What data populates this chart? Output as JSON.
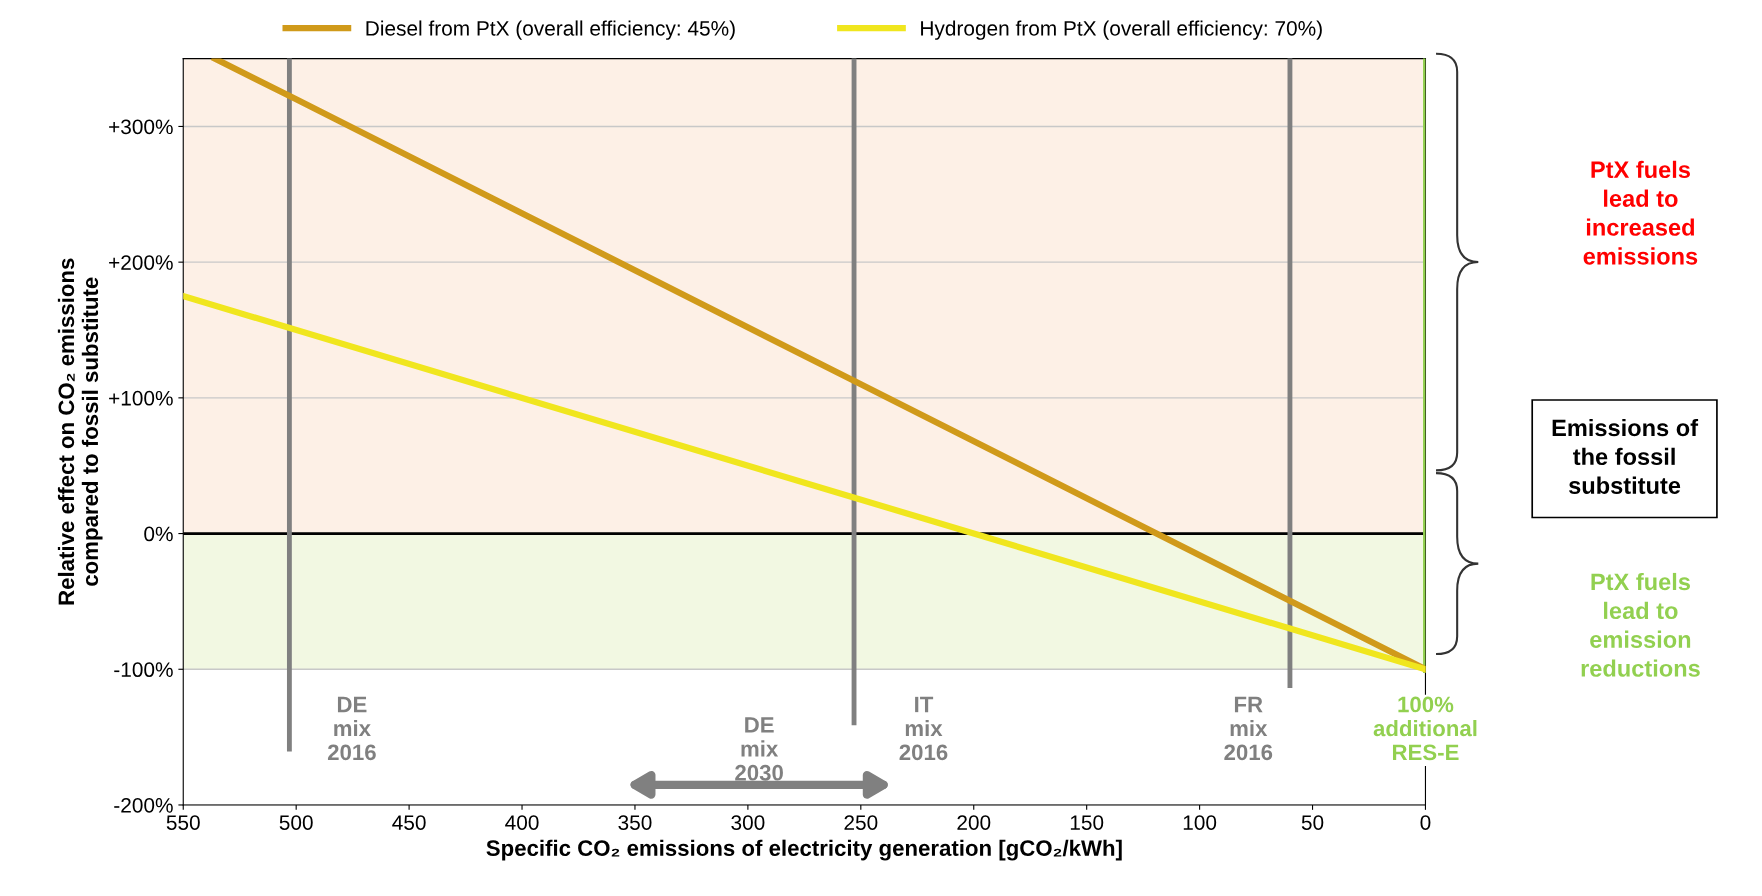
{
  "chart_data": {
    "type": "line",
    "xlabel": "Specific CO₂ emissions of electricity generation [gCO₂/kWh]",
    "ylabel": "Relative effect on CO₂ emissions\ncompared to fossil substitute",
    "series": [
      {
        "name": "Diesel from PtX (overall efficiency: 45%)",
        "color": "#d09a1a",
        "x": [
          0,
          250,
          500,
          536
        ],
        "values": [
          -100,
          110,
          320,
          350
        ]
      },
      {
        "name": "Hydrogen from PtX (overall efficiency: 70%)",
        "color": "#f0e61e",
        "x": [
          0,
          200,
          550
        ],
        "values": [
          -100,
          0,
          175
        ]
      }
    ],
    "xlim": [
      550,
      0
    ],
    "xticks": [
      550,
      500,
      450,
      400,
      350,
      300,
      250,
      200,
      150,
      100,
      50,
      0
    ],
    "ylim": [
      -200,
      350
    ],
    "yticks": [
      {
        "value": -200,
        "label": "-200%"
      },
      {
        "value": -100,
        "label": "-100%"
      },
      {
        "value": 0,
        "label": "0%"
      },
      {
        "value": 100,
        "label": "+100%"
      },
      {
        "value": 200,
        "label": "+200%"
      },
      {
        "value": 300,
        "label": "+300%"
      }
    ],
    "grid": "y",
    "legend": "top",
    "line_style": "solid",
    "marker": "none",
    "bands": [
      {
        "axis": "y",
        "from": 0,
        "to": 350,
        "color": "#fdf0e6"
      },
      {
        "axis": "y",
        "from": -100,
        "to": 0,
        "color": "#f2f8e2"
      }
    ],
    "ref_lines": [
      {
        "axis": "y",
        "value": 0,
        "color": "#000000"
      },
      {
        "axis": "x",
        "value": 503,
        "label": "DE\nmix\n2016",
        "color": "#808080"
      },
      {
        "axis": "x",
        "value": 253,
        "label": "IT\nmix\n2016",
        "color": "#808080"
      },
      {
        "axis": "x",
        "value": 60,
        "label": "FR\nmix\n2016",
        "color": "#808080"
      },
      {
        "axis": "x",
        "value": 0,
        "label": "100%\nadditional\nRES-E",
        "color": "#92d050"
      }
    ],
    "annotations": [
      "DE\nmix\n2030",
      "PtX fuels\nlead to\nincreased\nemissions",
      "Emissions of\nthe fossil\nsubstitute",
      "PtX fuels\nlead to\nemission\nreductions"
    ]
  }
}
